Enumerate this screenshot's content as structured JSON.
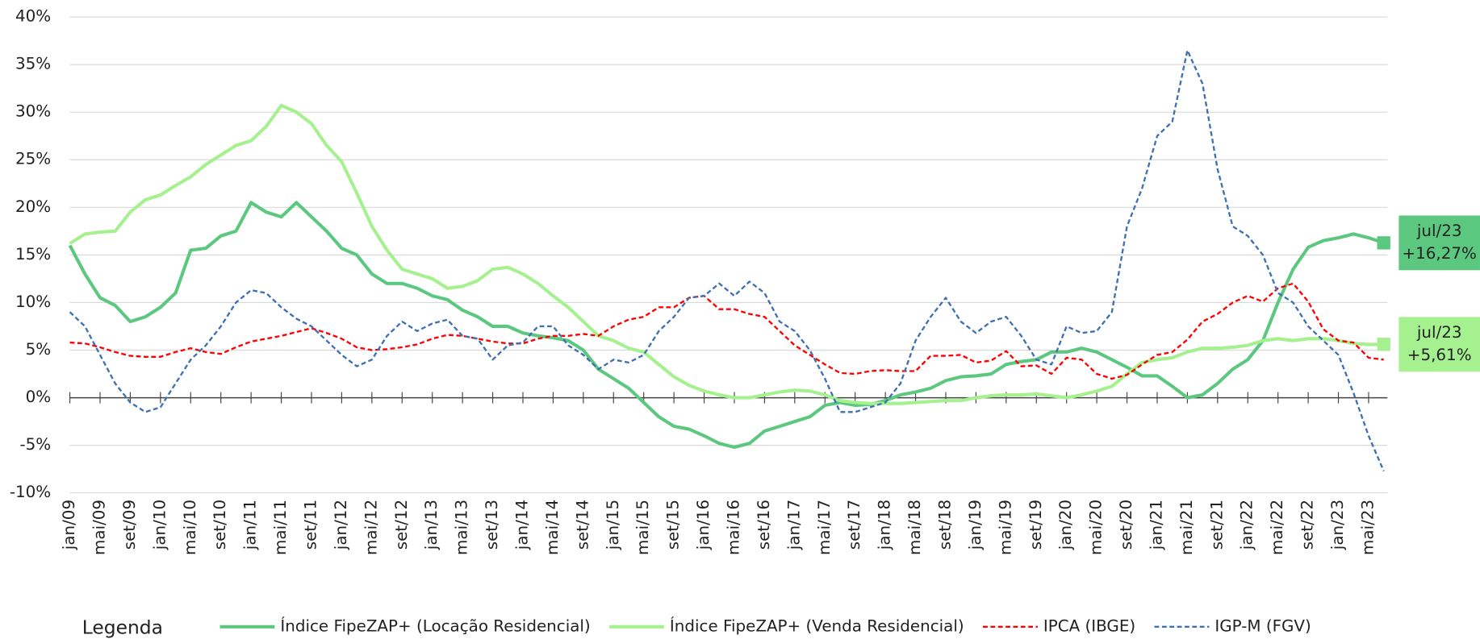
{
  "chart_data": {
    "type": "line",
    "legend_title": "Legenda",
    "categories": [
      "jan/09",
      null,
      "mai/09",
      null,
      "set/09",
      null,
      "jan/10",
      null,
      "mai/10",
      null,
      "set/10",
      null,
      "jan/11",
      null,
      "mai/11",
      null,
      "set/11",
      null,
      "jan/12",
      null,
      "mai/12",
      null,
      "set/12",
      null,
      "jan/13",
      null,
      "mai/13",
      null,
      "set/13",
      null,
      "jan/14",
      null,
      "mai/14",
      null,
      "set/14",
      null,
      "jan/15",
      null,
      "mai/15",
      null,
      "set/15",
      null,
      "jan/16",
      null,
      "mai/16",
      null,
      "set/16",
      null,
      "jan/17",
      null,
      "mai/17",
      null,
      "set/17",
      null,
      "jan/18",
      null,
      "mai/18",
      null,
      "set/18",
      null,
      "jan/19",
      null,
      "mai/19",
      null,
      "set/19",
      null,
      "jan/20",
      null,
      "mai/20",
      null,
      "set/20",
      null,
      "jan/21",
      null,
      "mai/21",
      null,
      "set/21",
      null,
      "jan/22",
      null,
      "mai/22",
      null,
      "set/22",
      null,
      "jan/23",
      null,
      "mai/23",
      null
    ],
    "ylim": [
      -10,
      40
    ],
    "yticks": [
      {
        "value": -10,
        "label": "-10%"
      },
      {
        "value": -5,
        "label": "-5%"
      },
      {
        "value": 0,
        "label": "0%"
      },
      {
        "value": 5,
        "label": "5%"
      },
      {
        "value": 10,
        "label": "10%"
      },
      {
        "value": 15,
        "label": "15%"
      },
      {
        "value": 20,
        "label": "20%"
      },
      {
        "value": 25,
        "label": "25%"
      },
      {
        "value": 30,
        "label": "30%"
      },
      {
        "value": 35,
        "label": "35%"
      },
      {
        "value": 40,
        "label": "40%"
      }
    ],
    "grid": true,
    "series": [
      {
        "name": "Índice FipeZAP+ (Locação Residencial)",
        "color": "#5cc87f",
        "dash": false,
        "width": 3.5,
        "end_label": {
          "x": "jul/23",
          "text": "+16,27%"
        },
        "values": [
          16,
          13,
          10.5,
          9.7,
          8,
          8.5,
          9.5,
          11,
          15.5,
          15.7,
          17,
          17.5,
          20.5,
          19.5,
          19,
          20.5,
          19,
          17.5,
          15.7,
          15,
          13,
          12,
          12,
          11.5,
          10.7,
          10.3,
          9.2,
          8.5,
          7.5,
          7.5,
          6.8,
          6.5,
          6.3,
          6,
          5,
          3,
          2,
          1,
          -0.5,
          -2,
          -3,
          -3.3,
          -4,
          -4.8,
          -5.2,
          -4.8,
          -3.5,
          -3,
          -2.5,
          -2,
          -0.8,
          -0.5,
          -0.8,
          -0.7,
          -0.3,
          0.3,
          0.6,
          1,
          1.8,
          2.2,
          2.3,
          2.5,
          3.5,
          3.8,
          4,
          4.8,
          4.8,
          5.2,
          4.8,
          4,
          3.2,
          2.3,
          2.3,
          1.2,
          0,
          0.3,
          1.5,
          3,
          4,
          6,
          10,
          13.5,
          15.8,
          16.5,
          16.8,
          17.2,
          16.8,
          16.27
        ]
      },
      {
        "name": "Índice FipeZAP+ (Venda Residencial)",
        "color": "#a6f18f",
        "dash": false,
        "width": 3.5,
        "end_label": {
          "x": "jul/23",
          "text": "+5,61%"
        },
        "values": [
          16.2,
          17.2,
          17.4,
          17.5,
          19.5,
          20.8,
          21.3,
          22.3,
          23.2,
          24.5,
          25.5,
          26.5,
          27,
          28.5,
          30.7,
          30,
          28.8,
          26.5,
          24.8,
          21.5,
          18,
          15.5,
          13.5,
          13,
          12.5,
          11.5,
          11.7,
          12.3,
          13.5,
          13.7,
          13,
          12,
          10.7,
          9.5,
          8,
          6.5,
          6,
          5.2,
          4.8,
          3.5,
          2.2,
          1.3,
          0.7,
          0.3,
          0,
          0,
          0.3,
          0.6,
          0.8,
          0.7,
          0.3,
          -0.3,
          -0.5,
          -0.6,
          -0.6,
          -0.6,
          -0.5,
          -0.4,
          -0.3,
          -0.3,
          0,
          0.2,
          0.3,
          0.3,
          0.4,
          0.2,
          0,
          0.3,
          0.7,
          1.2,
          2.5,
          3.7,
          4,
          4.2,
          4.8,
          5.2,
          5.2,
          5.3,
          5.5,
          6,
          6.2,
          6,
          6.2,
          6.2,
          6,
          5.7,
          5.6,
          5.61
        ]
      },
      {
        "name": "IPCA (IBGE)",
        "color": "#ff0000",
        "dash": true,
        "width": 2,
        "values": [
          5.8,
          5.7,
          5.3,
          4.8,
          4.4,
          4.3,
          4.3,
          4.8,
          5.2,
          4.8,
          4.6,
          5.3,
          5.9,
          6.2,
          6.5,
          6.9,
          7.3,
          6.8,
          6.2,
          5.3,
          5,
          5.1,
          5.3,
          5.6,
          6.2,
          6.6,
          6.5,
          6.2,
          5.9,
          5.7,
          5.7,
          6.2,
          6.5,
          6.5,
          6.7,
          6.5,
          7.5,
          8.2,
          8.5,
          9.5,
          9.5,
          10.5,
          10.7,
          9.3,
          9.3,
          8.8,
          8.5,
          7,
          5.5,
          4.5,
          3.5,
          2.6,
          2.5,
          2.8,
          2.9,
          2.8,
          2.8,
          4.4,
          4.4,
          4.5,
          3.7,
          3.9,
          4.9,
          3.3,
          3.4,
          2.5,
          4.2,
          4,
          2.5,
          2,
          2.4,
          3.5,
          4.5,
          4.8,
          6.1,
          8,
          8.8,
          10,
          10.7,
          10.1,
          11.5,
          12,
          10.1,
          7.2,
          6,
          5.8,
          4.2,
          4
        ]
      },
      {
        "name": "IGP-M (FGV)",
        "color": "#3f70b0",
        "dash": true,
        "width": 2,
        "values": [
          9,
          7.5,
          4.5,
          1.5,
          -0.5,
          -1.5,
          -1,
          1.5,
          4,
          5.5,
          7.5,
          10,
          11.3,
          11,
          9.5,
          8.3,
          7.5,
          6,
          4.5,
          3.3,
          4,
          6.5,
          8,
          7,
          7.8,
          8.2,
          6.5,
          6.2,
          4,
          5.5,
          5.8,
          7.5,
          7.5,
          5.5,
          4.5,
          3,
          4,
          3.7,
          4.5,
          7,
          8.5,
          10.5,
          10.7,
          12,
          10.7,
          12.2,
          11,
          8,
          7,
          5,
          2,
          -1.5,
          -1.5,
          -1,
          -0.5,
          1.5,
          6,
          8.5,
          10.5,
          8,
          6.8,
          8,
          8.5,
          6.5,
          4,
          3.5,
          7.5,
          6.8,
          7,
          9,
          18,
          22,
          27.5,
          29,
          36.5,
          33,
          24,
          18,
          17,
          15,
          11,
          10,
          7.5,
          6,
          4.5,
          0.5,
          -4,
          -7.7
        ]
      }
    ]
  }
}
